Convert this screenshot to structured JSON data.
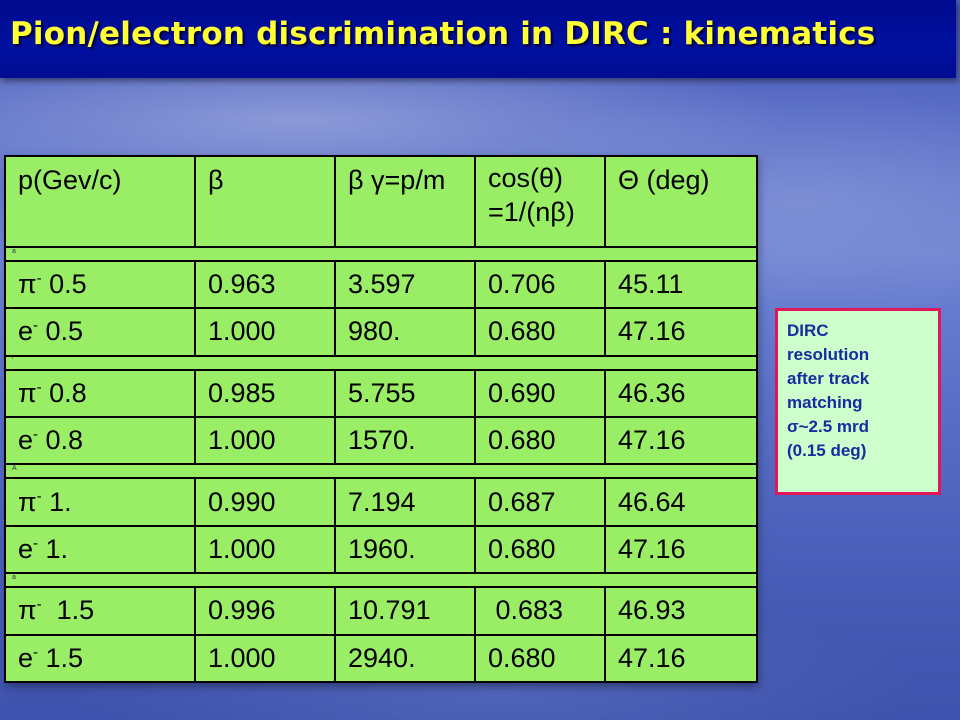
{
  "slide": {
    "title": "Pion/electron discrimination in DIRC : kinematics"
  },
  "table": {
    "headers": [
      "p(Gev/c)",
      "β",
      "β γ=p/m",
      "cos(θ) =1/(nβ)",
      "Θ (deg)"
    ],
    "separators": [
      "a",
      "'",
      "A",
      "a"
    ],
    "rows": [
      {
        "p": "π",
        "charge": "-",
        "mom": " 0.5",
        "beta": "0.963",
        "bg": "3.597",
        "cos": "0.706",
        "theta": "45.11"
      },
      {
        "p": "e",
        "charge": "-",
        "mom": " 0.5",
        "beta": "1.000",
        "bg": "980.",
        "cos": "0.680",
        "theta": "47.16"
      },
      {
        "p": "π",
        "charge": "-",
        "mom": " 0.8",
        "beta": "0.985",
        "bg": "5.755",
        "cos": "0.690",
        "theta": "46.36"
      },
      {
        "p": "e",
        "charge": "-",
        "mom": " 0.8",
        "beta": "1.000",
        "bg": "1570.",
        "cos": "0.680",
        "theta": "47.16"
      },
      {
        "p": "π",
        "charge": "-",
        "mom": " 1.",
        "beta": "0.990",
        "bg": "7.194",
        "cos": "0.687",
        "theta": "46.64"
      },
      {
        "p": "e",
        "charge": "-",
        "mom": " 1.",
        "beta": "1.000",
        "bg": "1960.",
        "cos": "0.680",
        "theta": "47.16"
      },
      {
        "p": "π",
        "charge": "-",
        "mom": "  1.5",
        "beta": "0.996",
        "bg": "10.791",
        "cos": " 0.683",
        "theta": "46.93"
      },
      {
        "p": "e",
        "charge": "-",
        "mom": " 1.5",
        "beta": "1.000",
        "bg": "2940.",
        "cos": "0.680",
        "theta": "47.16"
      }
    ]
  },
  "note": {
    "lines": [
      "DIRC",
      "resolution",
      "after track",
      "matching",
      "σ~2.5 mrd",
      "(0.15 deg)"
    ]
  },
  "colors": {
    "title_bar": "#000c92",
    "title_text": "#ffff33",
    "table_bg": "#99ee66",
    "note_bg": "#ccffcc",
    "note_border": "#e0185a",
    "note_text": "#1a2aa0"
  }
}
